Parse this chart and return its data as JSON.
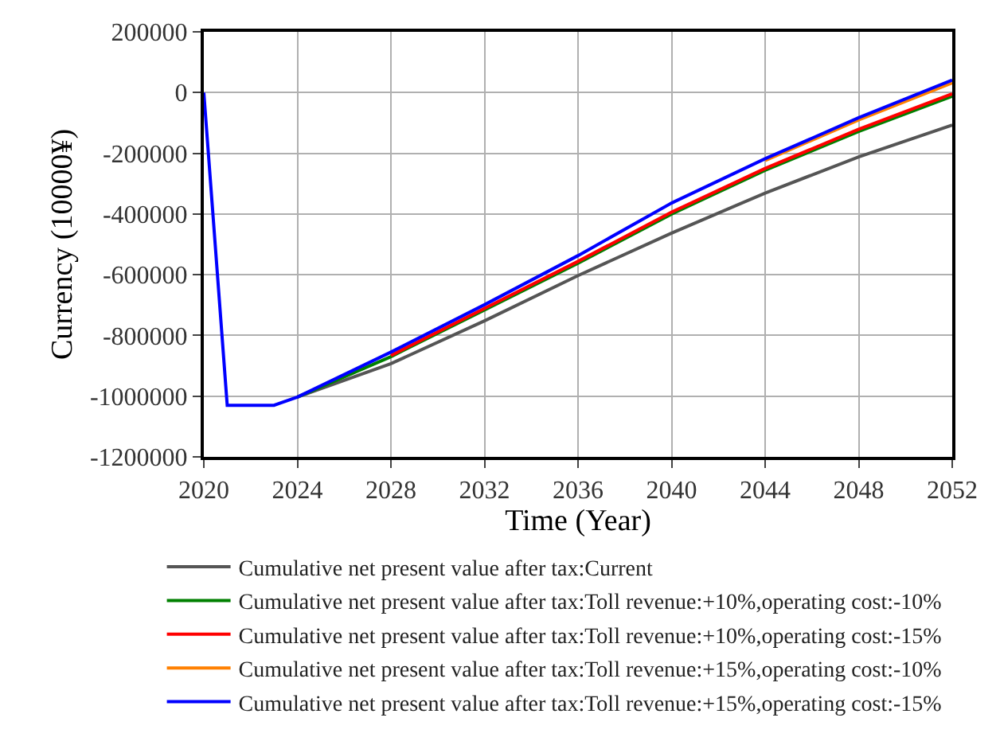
{
  "chart_data": {
    "type": "line",
    "xlabel": "Time (Year)",
    "ylabel": "Currency (10000¥)",
    "x": [
      2020,
      2021,
      2023,
      2024,
      2028,
      2032,
      2036,
      2040,
      2044,
      2048,
      2052
    ],
    "series": [
      {
        "name": "Cumulative net present value after tax:Current",
        "color": "#555555",
        "values": [
          null,
          null,
          null,
          -1003000,
          -893000,
          -752000,
          -603000,
          -463000,
          -331000,
          -212000,
          -107000
        ]
      },
      {
        "name": "Cumulative net present value after tax:Toll revenue:+10%,operating cost:-10%",
        "color": "#008000",
        "values": [
          null,
          null,
          null,
          -1003000,
          -870000,
          -716000,
          -562000,
          -400000,
          -256000,
          -128000,
          -12000
        ]
      },
      {
        "name": "Cumulative net present value after tax:Toll revenue:+10%,operating cost:-15%",
        "color": "#ff0000",
        "values": [
          null,
          null,
          null,
          null,
          -866000,
          -711000,
          -556000,
          -394000,
          -250000,
          -121000,
          -4000
        ]
      },
      {
        "name": "Cumulative net present value after tax:Toll revenue:+15%,operating cost:-10%",
        "color": "#ff8000",
        "values": [
          null,
          null,
          null,
          null,
          null,
          null,
          null,
          null,
          -224000,
          -90000,
          32000
        ]
      },
      {
        "name": "Cumulative net present value after tax:Toll revenue:+15%,operating cost:-15%",
        "color": "#0000ff",
        "values": [
          0,
          -1030000,
          -1030000,
          -1003000,
          -855000,
          -699000,
          -537000,
          -364000,
          -218000,
          -83000,
          41000
        ]
      }
    ],
    "xlim": [
      2020,
      2052
    ],
    "xticks": [
      2020,
      2024,
      2028,
      2032,
      2036,
      2040,
      2044,
      2048,
      2052
    ],
    "ylim": [
      -1200000,
      200000
    ],
    "yticks": [
      -1200000,
      -1000000,
      -800000,
      -600000,
      -400000,
      -200000,
      0,
      200000
    ],
    "grid": true,
    "legend": "bottom",
    "marker": "none",
    "line_style": "solid"
  }
}
